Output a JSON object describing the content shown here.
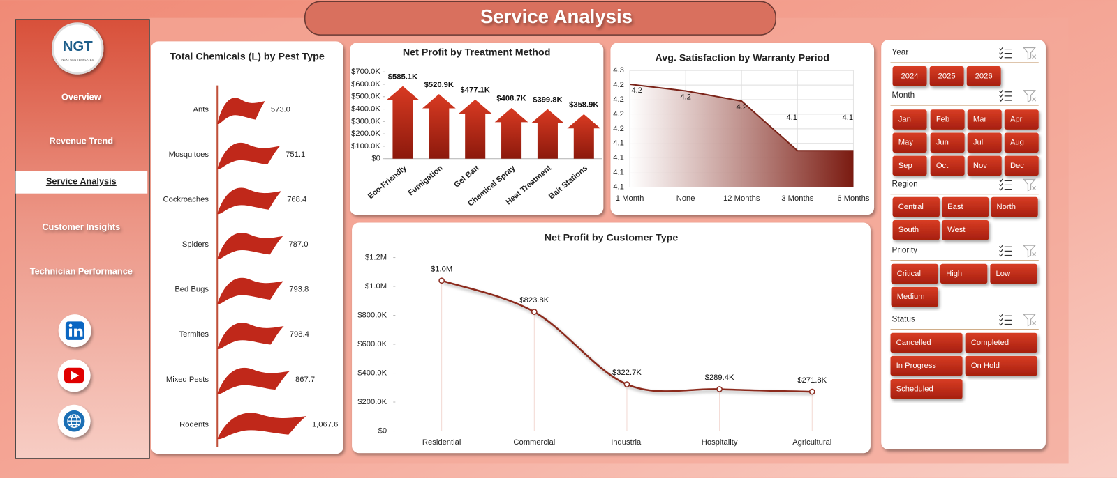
{
  "title": "Service Analysis",
  "logo": {
    "text": "NGT",
    "subtitle": "NEXT GEN TEMPLATES"
  },
  "nav": [
    {
      "label": "Overview"
    },
    {
      "label": "Revenue Trend"
    },
    {
      "label": "Service Analysis",
      "selected": true
    },
    {
      "label": "Customer Insights"
    },
    {
      "label": "Technician Performance"
    }
  ],
  "chart_data": [
    {
      "type": "bar",
      "horizontal": true,
      "title": "Total Chemicals (L) by Pest Type",
      "categories": [
        "Ants",
        "Mosquitoes",
        "Cockroaches",
        "Spiders",
        "Bed Bugs",
        "Termites",
        "Mixed Pests",
        "Rodents"
      ],
      "values": [
        573.0,
        751.1,
        768.4,
        787.0,
        793.8,
        798.4,
        867.7,
        1067.6
      ],
      "value_labels": [
        "573.0",
        "751.1",
        "768.4",
        "787.0",
        "793.8",
        "798.4",
        "867.7",
        "1,067.6"
      ],
      "color": "#c0281a"
    },
    {
      "type": "bar",
      "title": "Net Profit by Treatment Method",
      "categories": [
        "Eco-Friendly",
        "Fumigation",
        "Gel Bait",
        "Chemical Spray",
        "Heat Treatment",
        "Bait Stations"
      ],
      "values": [
        585100,
        520900,
        477100,
        408700,
        399800,
        358900
      ],
      "value_labels": [
        "$585.1K",
        "$520.9K",
        "$477.1K",
        "$408.7K",
        "$399.8K",
        "$358.9K"
      ],
      "ylim": [
        0,
        700000
      ],
      "yticks": [
        {
          "value": 0,
          "label": "$0"
        },
        {
          "value": 100000,
          "label": "$100.0K"
        },
        {
          "value": 200000,
          "label": "$200.0K"
        },
        {
          "value": 300000,
          "label": "$300.0K"
        },
        {
          "value": 400000,
          "label": "$400.0K"
        },
        {
          "value": 500000,
          "label": "$500.0K"
        },
        {
          "value": 600000,
          "label": "$600.0K"
        },
        {
          "value": 700000,
          "label": "$700.0K"
        }
      ],
      "color": "#b52214",
      "grid": false
    },
    {
      "type": "area",
      "title": "Avg. Satisfaction by Warranty Period",
      "categories": [
        "1 Month",
        "None",
        "12 Months",
        "3 Months",
        "6 Months"
      ],
      "values": [
        4.231,
        4.222,
        4.208,
        4.14,
        4.14
      ],
      "value_labels": [
        "4.2",
        "4.2",
        "4.2",
        "4.1",
        "4.1"
      ],
      "ylim": [
        4.09,
        4.25
      ],
      "yticks": [
        {
          "value": 4.09,
          "label": "4.1"
        },
        {
          "value": 4.11,
          "label": "4.1"
        },
        {
          "value": 4.13,
          "label": "4.1"
        },
        {
          "value": 4.15,
          "label": "4.1"
        },
        {
          "value": 4.17,
          "label": "4.2"
        },
        {
          "value": 4.19,
          "label": "4.2"
        },
        {
          "value": 4.21,
          "label": "4.2"
        },
        {
          "value": 4.23,
          "label": "4.2"
        },
        {
          "value": 4.25,
          "label": "4.3"
        }
      ],
      "color": "#7a2318",
      "grid": true
    },
    {
      "type": "line",
      "smooth": true,
      "title": "Net Profit by Customer Type",
      "categories": [
        "Residential",
        "Commercial",
        "Industrial",
        "Hospitality",
        "Agricultural"
      ],
      "values": [
        1040000,
        823800,
        322700,
        289400,
        271800
      ],
      "value_labels": [
        "$1.0M",
        "$823.8K",
        "$322.7K",
        "$289.4K",
        "$271.8K"
      ],
      "ylim": [
        0,
        1200000
      ],
      "yticks": [
        {
          "value": 0,
          "label": "$0"
        },
        {
          "value": 200000,
          "label": "$200.0K"
        },
        {
          "value": 400000,
          "label": "$400.0K"
        },
        {
          "value": 600000,
          "label": "$600.0K"
        },
        {
          "value": 800000,
          "label": "$800.0K"
        },
        {
          "value": 1000000,
          "label": "$1.0M"
        },
        {
          "value": 1200000,
          "label": "$1.2M"
        }
      ],
      "color": "#8b2a1e",
      "grid": false
    }
  ],
  "slicers": [
    {
      "title": "Year",
      "options": [
        "2024",
        "2025",
        "2026"
      ]
    },
    {
      "title": "Month",
      "options": [
        "Jan",
        "Feb",
        "Mar",
        "Apr",
        "May",
        "Jun",
        "Jul",
        "Aug",
        "Sep",
        "Oct",
        "Nov",
        "Dec"
      ]
    },
    {
      "title": "Region",
      "options": [
        "Central",
        "East",
        "North",
        "South",
        "West"
      ]
    },
    {
      "title": "Priority",
      "options": [
        "Critical",
        "High",
        "Low",
        "Medium"
      ]
    },
    {
      "title": "Status",
      "options": [
        "Cancelled",
        "Completed",
        "In Progress",
        "On Hold",
        "Scheduled"
      ]
    }
  ]
}
